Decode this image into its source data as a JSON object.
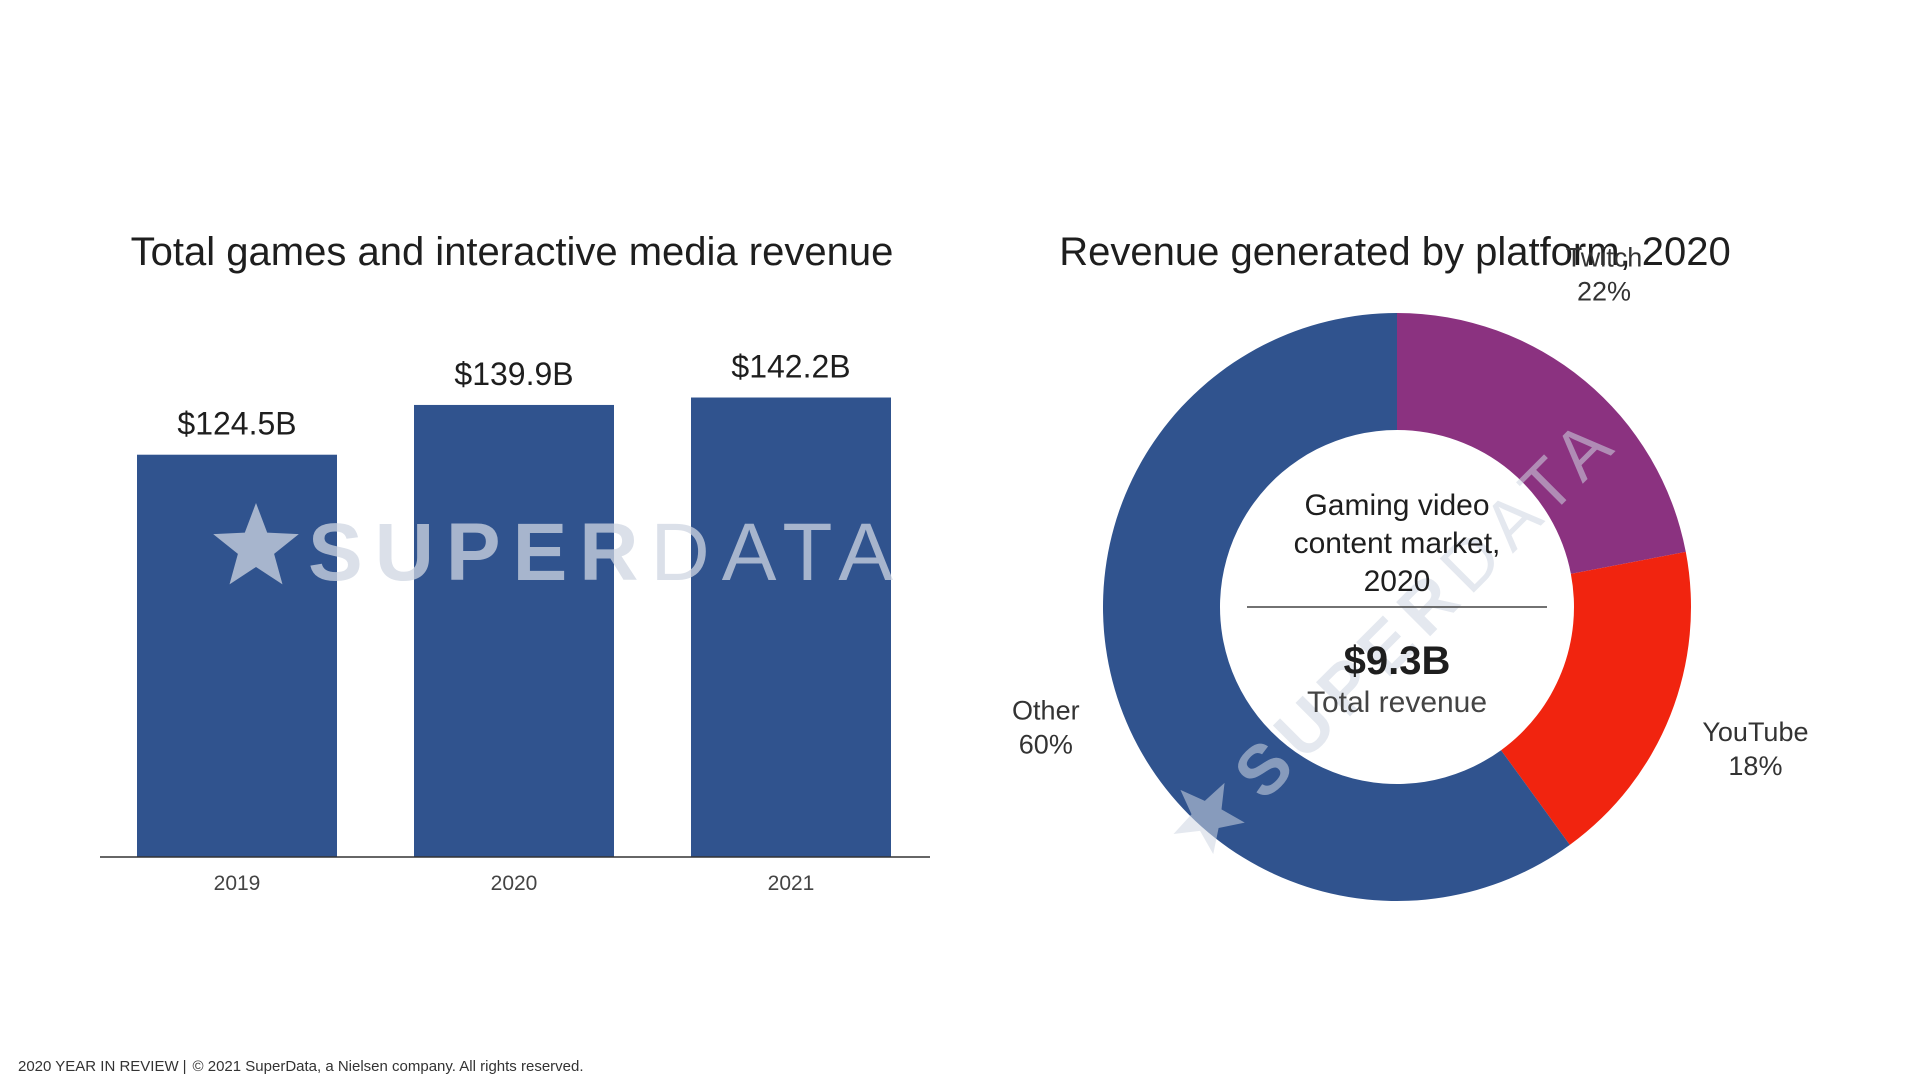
{
  "colors": {
    "bar": "#30538e",
    "other": "#30538e",
    "twitch": "#8b3280",
    "youtube": "#f1240f",
    "axis": "#333333",
    "watermark": "#cfd6e2"
  },
  "watermark": {
    "text_super": "SUPER",
    "text_data": "DATA",
    "icon": "star-icon"
  },
  "chart_data": [
    {
      "type": "bar",
      "title": "Total games and interactive media revenue",
      "categories": [
        "2019",
        "2020",
        "2021"
      ],
      "values": [
        124.5,
        139.9,
        142.2
      ],
      "data_labels": [
        "$124.5B",
        "$139.9B",
        "$142.2B"
      ],
      "ylim": [
        0,
        160
      ],
      "xlabel": "",
      "ylabel": "",
      "grid": false,
      "legend": "none"
    },
    {
      "type": "pie",
      "title": "Revenue generated by platform, 2020",
      "slices": [
        {
          "label": "Twitch",
          "value": 22,
          "value_label": "22%",
          "color": "#8b3280"
        },
        {
          "label": "YouTube",
          "value": 18,
          "value_label": "18%",
          "color": "#f1240f"
        },
        {
          "label": "Other",
          "value": 60,
          "value_label": "60%",
          "color": "#30538e"
        }
      ],
      "center": {
        "lines": [
          "Gaming video",
          "content market,",
          "2020"
        ],
        "value": "$9.3B",
        "caption": "Total revenue"
      },
      "legend": "none"
    }
  ],
  "footer": {
    "left": "2020 YEAR IN REVIEW",
    "separator": "|",
    "right": "© 2021 SuperData, a Nielsen company. All rights reserved."
  }
}
